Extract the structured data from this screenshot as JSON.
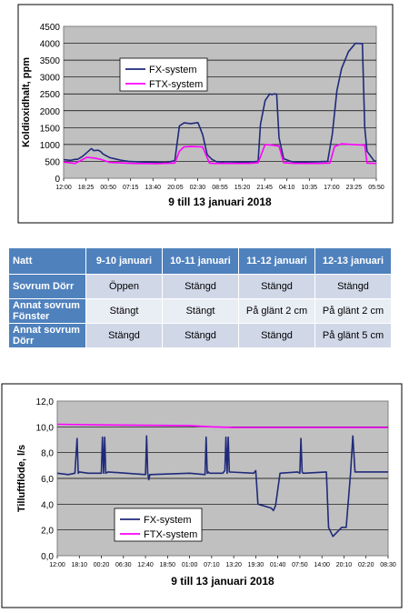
{
  "chart_data": [
    {
      "type": "line",
      "title": "",
      "xlabel": "9 till 13 januari 2018",
      "ylabel": "Koldioxidhalt, ppm",
      "ylim": [
        0,
        4500
      ],
      "yticks": [
        "0",
        "500",
        "1000",
        "1500",
        "2000",
        "2500",
        "3000",
        "3500",
        "4000",
        "4500"
      ],
      "xticks": [
        "12:00",
        "18:25",
        "00:50",
        "07:15",
        "13:40",
        "20:05",
        "02:30",
        "08:55",
        "15:20",
        "21:45",
        "04:10",
        "10:35",
        "17:00",
        "23:25",
        "05:50"
      ],
      "grid": true,
      "legend_position": "top-left",
      "series": [
        {
          "name": "FX-system",
          "color": "#1f2a7a",
          "x": [
            0,
            3,
            5,
            6,
            8,
            10,
            12,
            13,
            15,
            16,
            17,
            20,
            25,
            28,
            31,
            35,
            40,
            44,
            48,
            50,
            52,
            55,
            58,
            60,
            62,
            64,
            66,
            69,
            70,
            75,
            80,
            84,
            85,
            87,
            89,
            90,
            91,
            92,
            93,
            95,
            98,
            100,
            105,
            110,
            114,
            116,
            118,
            120,
            123,
            126,
            129,
            130,
            131,
            134,
            135
          ],
          "y": [
            550,
            530,
            560,
            560,
            640,
            760,
            880,
            820,
            830,
            790,
            720,
            610,
            530,
            500,
            490,
            480,
            470,
            460,
            520,
            1550,
            1640,
            1620,
            1650,
            1300,
            700,
            560,
            490,
            480,
            490,
            480,
            480,
            500,
            1600,
            2300,
            2500,
            2480,
            2500,
            2490,
            1200,
            580,
            500,
            480,
            480,
            490,
            500,
            1300,
            2600,
            3250,
            3750,
            4000,
            3990,
            1500,
            800,
            520,
            500
          ]
        },
        {
          "name": "FTX-system",
          "color": "#ff00ff",
          "x": [
            0,
            5,
            10,
            13,
            16,
            20,
            30,
            40,
            48,
            50,
            52,
            55,
            60,
            63,
            65,
            70,
            80,
            84,
            87,
            90,
            93,
            95,
            100,
            110,
            115,
            117,
            120,
            125,
            130,
            131,
            135
          ],
          "y": [
            480,
            440,
            620,
            600,
            560,
            470,
            440,
            430,
            450,
            800,
            930,
            940,
            930,
            450,
            440,
            440,
            440,
            460,
            1000,
            980,
            950,
            460,
            440,
            440,
            450,
            940,
            1020,
            1000,
            980,
            450,
            440
          ]
        }
      ]
    },
    {
      "type": "table",
      "columns": [
        "Natt",
        "9-10 januari",
        "10-11 januari",
        "11-12 januari",
        "12-13 januari"
      ],
      "rows": [
        {
          "label": "Sovrum Dörr",
          "values": [
            "Öppen",
            "Stängd",
            "Stängd",
            "Stängd"
          ]
        },
        {
          "label": "Annat sovrum Fönster",
          "values": [
            "Stängt",
            "Stängt",
            "På glänt 2 cm",
            "På glänt 2 cm"
          ]
        },
        {
          "label": "Annat sovrum Dörr",
          "values": [
            "Stängd",
            "Stängd",
            "Stängd",
            "På glänt 5 cm"
          ]
        }
      ]
    },
    {
      "type": "line",
      "title": "",
      "xlabel": "9 till 13 januari 2018",
      "ylabel": "Tilluftflöde, l/s",
      "ylim": [
        0,
        12
      ],
      "yticks": [
        "0,0",
        "2,0",
        "4,0",
        "6,0",
        "8,0",
        "10,0",
        "12,0"
      ],
      "xticks": [
        "12:00",
        "18:10",
        "00:20",
        "06:30",
        "12:40",
        "18:50",
        "01:00",
        "07:10",
        "13:20",
        "19:30",
        "01:40",
        "07:50",
        "14:00",
        "20:10",
        "02:20",
        "08:30"
      ],
      "grid": true,
      "legend_position": "bottom-left",
      "series": [
        {
          "name": "FX-system",
          "color": "#1f2a7a",
          "x": [
            0,
            5,
            8,
            9,
            9.5,
            10,
            14,
            20,
            20.5,
            21,
            21.5,
            22,
            23,
            40,
            40.5,
            41,
            41.5,
            42,
            60,
            67,
            67.5,
            68,
            68.5,
            69,
            75,
            76,
            76.5,
            77,
            77.5,
            78,
            89,
            90,
            91,
            97,
            98,
            99,
            101,
            109,
            110,
            110.5,
            111,
            111.5,
            112,
            122,
            123,
            125,
            129,
            131,
            133,
            134,
            135,
            150
          ],
          "y": [
            6.4,
            6.3,
            6.4,
            9.1,
            6.4,
            6.5,
            6.4,
            6.4,
            9.2,
            6.4,
            9.2,
            6.4,
            6.5,
            6.3,
            9.3,
            6.4,
            5.9,
            6.3,
            6.4,
            6.3,
            9.2,
            6.4,
            6.5,
            6.4,
            6.4,
            6.6,
            9.2,
            6.4,
            9.2,
            6.5,
            6.4,
            6.6,
            4.0,
            3.7,
            3.5,
            3.9,
            6.4,
            6.5,
            6.4,
            9.1,
            6.5,
            6.4,
            6.4,
            6.5,
            2.2,
            1.5,
            2.2,
            2.2,
            6.4,
            9.3,
            6.5,
            6.5
          ]
        },
        {
          "name": "FTX-system",
          "color": "#ff00ff",
          "x": [
            0,
            20,
            40,
            60,
            70,
            80,
            100,
            120,
            140,
            150
          ],
          "y": [
            10.2,
            10.15,
            10.12,
            10.1,
            10.0,
            9.95,
            9.95,
            9.95,
            9.95,
            9.95
          ]
        }
      ]
    }
  ]
}
